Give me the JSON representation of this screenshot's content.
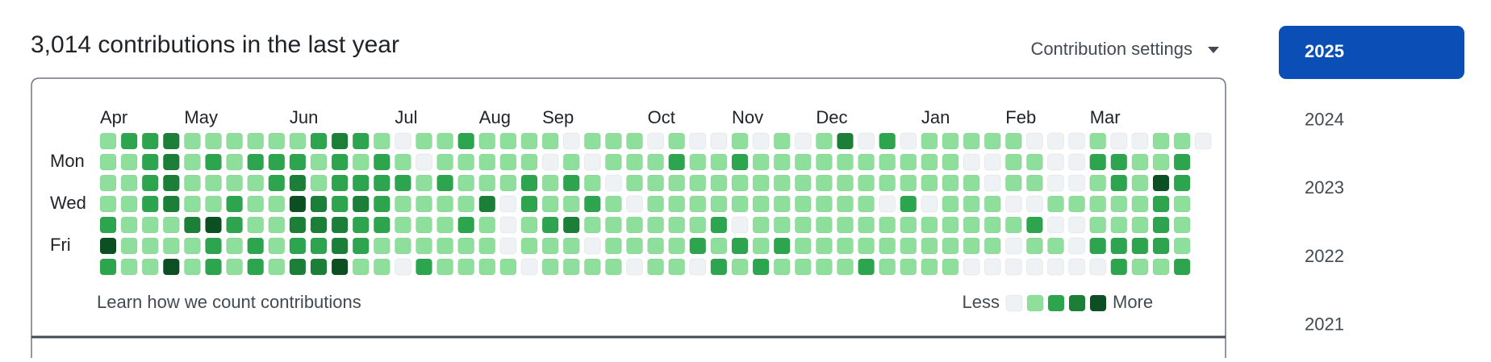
{
  "header": {
    "title": "3,014 contributions in the last year",
    "settings": "Contribution settings"
  },
  "graph": {
    "months": [
      {
        "label": "Apr",
        "week": 0
      },
      {
        "label": "May",
        "week": 4
      },
      {
        "label": "Jun",
        "week": 9
      },
      {
        "label": "Jul",
        "week": 14
      },
      {
        "label": "Aug",
        "week": 18
      },
      {
        "label": "Sep",
        "week": 21
      },
      {
        "label": "Oct",
        "week": 26
      },
      {
        "label": "Nov",
        "week": 30
      },
      {
        "label": "Dec",
        "week": 34
      },
      {
        "label": "Jan",
        "week": 39
      },
      {
        "label": "Feb",
        "week": 43
      },
      {
        "label": "Mar",
        "week": 47
      }
    ],
    "days": [
      null,
      "Mon",
      null,
      "Wed",
      null,
      "Fri",
      null
    ],
    "level_colors": [
      "#eff2f5",
      "#8ddf9b",
      "#2da44e",
      "#1b7f37",
      "#0b4f22"
    ],
    "rows": [
      [
        1,
        2,
        2,
        3,
        1,
        1,
        1,
        1,
        1,
        1,
        2,
        3,
        2,
        1,
        0,
        1,
        1,
        2,
        1,
        1,
        1,
        1,
        0,
        1,
        1,
        1,
        0,
        1,
        0,
        0,
        1,
        0,
        1,
        0,
        1,
        3,
        0,
        2,
        0,
        1,
        1,
        1,
        1,
        1,
        0,
        0,
        0,
        1,
        0,
        0,
        1,
        1,
        0
      ],
      [
        1,
        1,
        2,
        3,
        1,
        2,
        1,
        2,
        2,
        2,
        1,
        2,
        1,
        2,
        1,
        0,
        1,
        1,
        1,
        1,
        1,
        0,
        1,
        0,
        1,
        1,
        1,
        2,
        1,
        1,
        2,
        1,
        1,
        1,
        1,
        1,
        1,
        1,
        1,
        1,
        1,
        0,
        0,
        1,
        1,
        0,
        0,
        2,
        2,
        1,
        1,
        2
      ],
      [
        1,
        1,
        2,
        3,
        1,
        1,
        1,
        1,
        2,
        3,
        1,
        2,
        2,
        2,
        2,
        1,
        2,
        1,
        1,
        1,
        2,
        1,
        2,
        1,
        0,
        1,
        1,
        1,
        1,
        1,
        1,
        1,
        1,
        1,
        1,
        1,
        1,
        1,
        1,
        1,
        1,
        1,
        0,
        1,
        1,
        0,
        0,
        1,
        2,
        1,
        4,
        2
      ],
      [
        1,
        1,
        2,
        3,
        1,
        1,
        2,
        1,
        1,
        4,
        3,
        2,
        3,
        2,
        1,
        1,
        1,
        1,
        3,
        0,
        2,
        1,
        1,
        2,
        1,
        0,
        1,
        1,
        1,
        1,
        1,
        1,
        1,
        1,
        1,
        1,
        1,
        0,
        2,
        0,
        1,
        1,
        1,
        0,
        0,
        1,
        1,
        1,
        1,
        1,
        2,
        1
      ],
      [
        2,
        1,
        1,
        1,
        3,
        4,
        2,
        1,
        1,
        3,
        3,
        3,
        2,
        2,
        1,
        1,
        1,
        2,
        1,
        0,
        1,
        2,
        3,
        1,
        1,
        1,
        1,
        1,
        1,
        2,
        0,
        1,
        1,
        1,
        1,
        1,
        1,
        1,
        1,
        1,
        1,
        1,
        1,
        1,
        2,
        0,
        0,
        1,
        1,
        1,
        2,
        1
      ],
      [
        4,
        1,
        1,
        1,
        1,
        2,
        1,
        2,
        1,
        2,
        2,
        3,
        2,
        1,
        1,
        1,
        1,
        1,
        1,
        0,
        1,
        1,
        1,
        0,
        1,
        1,
        1,
        1,
        2,
        1,
        2,
        1,
        2,
        1,
        1,
        1,
        1,
        1,
        1,
        1,
        1,
        1,
        1,
        0,
        1,
        1,
        0,
        2,
        2,
        2,
        2,
        1
      ],
      [
        2,
        1,
        1,
        4,
        1,
        2,
        1,
        2,
        1,
        3,
        3,
        4,
        1,
        1,
        0,
        2,
        1,
        1,
        1,
        1,
        0,
        1,
        1,
        1,
        1,
        0,
        1,
        1,
        0,
        2,
        1,
        2,
        1,
        1,
        1,
        1,
        2,
        1,
        1,
        1,
        1,
        0,
        0,
        0,
        0,
        0,
        0,
        0,
        2,
        1,
        1,
        2
      ]
    ],
    "footer_link": "Learn how we count contributions",
    "legend": {
      "less": "Less",
      "more": "More",
      "levels": [
        0,
        1,
        2,
        3,
        4
      ]
    }
  },
  "sidebar": {
    "years": [
      "2025",
      "2024",
      "2023",
      "2022",
      "2021"
    ],
    "selected": 0
  }
}
